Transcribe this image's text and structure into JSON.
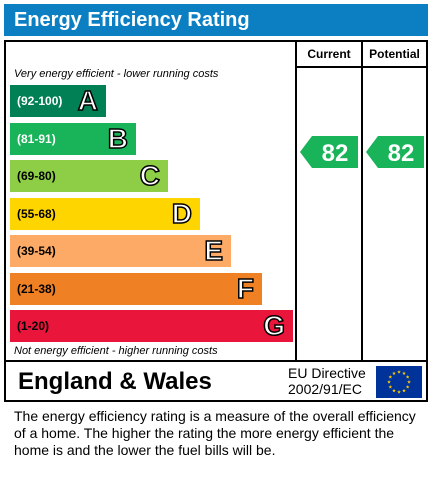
{
  "header": {
    "title": "Energy Efficiency Rating"
  },
  "columns": {
    "current": "Current",
    "potential": "Potential"
  },
  "notes": {
    "top": "Very energy efficient - lower running costs",
    "bottom": "Not energy efficient - higher running costs"
  },
  "chart_data": {
    "type": "bar",
    "title": "Energy Efficiency Rating",
    "bands": [
      {
        "range": "(92-100)",
        "letter": "A",
        "color": "#008054",
        "text_color": "#ffffff"
      },
      {
        "range": "(81-91)",
        "letter": "B",
        "color": "#19b459",
        "text_color": "#ffffff"
      },
      {
        "range": "(69-80)",
        "letter": "C",
        "color": "#8dce46",
        "text_color": "#000000"
      },
      {
        "range": "(55-68)",
        "letter": "D",
        "color": "#ffd500",
        "text_color": "#000000"
      },
      {
        "range": "(39-54)",
        "letter": "E",
        "color": "#fcaa65",
        "text_color": "#000000"
      },
      {
        "range": "(21-38)",
        "letter": "F",
        "color": "#ef8023",
        "text_color": "#000000"
      },
      {
        "range": "(1-20)",
        "letter": "G",
        "color": "#e9153b",
        "text_color": "#000000"
      }
    ],
    "current": {
      "value": 82,
      "band": "B"
    },
    "potential": {
      "value": 82,
      "band": "B"
    }
  },
  "footer": {
    "region": "England & Wales",
    "directive_line1": "EU Directive",
    "directive_line2": "2002/91/EC"
  },
  "description": "The energy efficiency rating is a measure of the overall efficiency of a home.  The higher the rating the more energy efficient the home is and the lower the fuel bills will be."
}
